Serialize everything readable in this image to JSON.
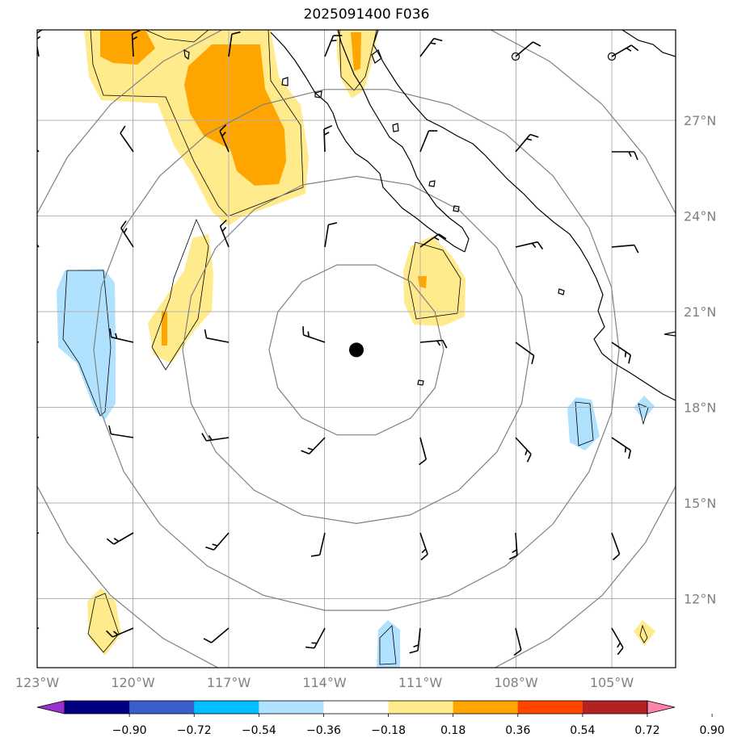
{
  "title": "2025091400 F036",
  "map": {
    "lon_ticks": [
      {
        "lon": -123,
        "label": "123°W"
      },
      {
        "lon": -120,
        "label": "120°W"
      },
      {
        "lon": -117,
        "label": "117°W"
      },
      {
        "lon": -114,
        "label": "114°W"
      },
      {
        "lon": -111,
        "label": "111°W"
      },
      {
        "lon": -108,
        "label": "108°W"
      },
      {
        "lon": -105,
        "label": "105°W"
      }
    ],
    "lat_ticks": [
      {
        "lat": 27,
        "label": "27°N"
      },
      {
        "lat": 24,
        "label": "24°N"
      },
      {
        "lat": 21,
        "label": "21°N"
      },
      {
        "lat": 18,
        "label": "18°N"
      },
      {
        "lat": 15,
        "label": "15°N"
      },
      {
        "lat": 12,
        "label": "12°N"
      }
    ],
    "storm_center": {
      "lon": -113,
      "lat": 19.8
    },
    "gridline_color": "#b0b0b0",
    "range_ring_color": "#808080",
    "coast_color": "#000000"
  },
  "colorbar": {
    "colors": [
      "#9932cc",
      "#000080",
      "#3a5fcd",
      "#00bfff",
      "#b0e2ff",
      "#ffffff",
      "#ffeb8c",
      "#ffa500",
      "#ff4500",
      "#b22222",
      "#ff82ab"
    ],
    "labels": [
      "−0.90",
      "−0.72",
      "−0.54",
      "−0.36",
      "−0.18",
      "0.18",
      "0.36",
      "0.54",
      "0.72",
      "0.90"
    ]
  }
}
